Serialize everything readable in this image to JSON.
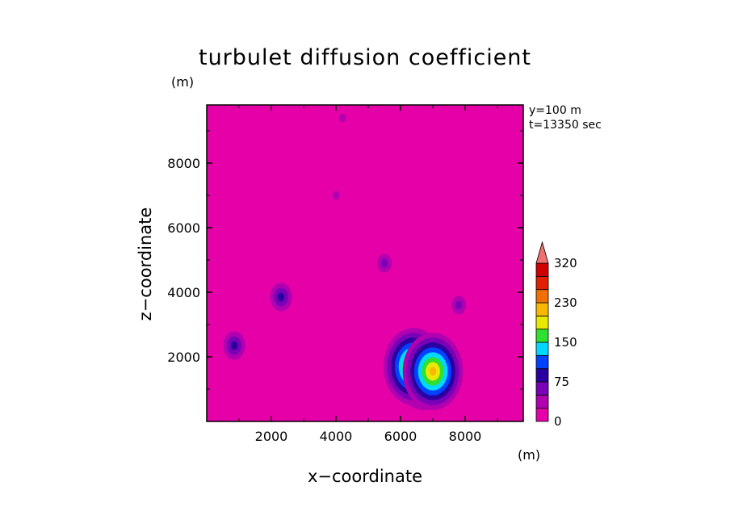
{
  "chart_data": {
    "type": "contour",
    "title": "turbulet diffusion coefficient",
    "xlabel": "x−coordinate",
    "ylabel": "z−coordinate",
    "x_unit": "(m)",
    "z_unit": "(m)",
    "annotations": [
      "y=100 m",
      "t=13350 sec"
    ],
    "xlim": [
      0,
      9800
    ],
    "ylim": [
      0,
      9800
    ],
    "xticks": [
      "2000",
      "4000",
      "6000",
      "8000"
    ],
    "yticks": [
      "2000",
      "4000",
      "6000",
      "8000"
    ],
    "background_color": "#e600a8",
    "colorbar": {
      "tick_labels": [
        "0",
        "75",
        "150",
        "230",
        "320"
      ],
      "levels": [
        0,
        25,
        50,
        75,
        100,
        125,
        150,
        180,
        205,
        230,
        260,
        290,
        320
      ],
      "colors": [
        "#e600a8",
        "#b000b0",
        "#7a00b8",
        "#2a00a0",
        "#0040ff",
        "#00d8ff",
        "#30e030",
        "#e8e800",
        "#f8b800",
        "#f07000",
        "#e02000",
        "#d00000",
        "#f07070"
      ]
    },
    "features": [
      {
        "x": 4200,
        "z": 9400,
        "level": 1
      },
      {
        "x": 4000,
        "z": 7000,
        "level": 1
      },
      {
        "x": 2300,
        "z": 3850,
        "level": 3
      },
      {
        "x": 850,
        "z": 2350,
        "level": 3
      },
      {
        "x": 6700,
        "z": 1400,
        "level": 7
      },
      {
        "x": 6400,
        "z": 1700,
        "level": 8
      },
      {
        "x": 7000,
        "z": 1550,
        "level": 8
      },
      {
        "x": 5500,
        "z": 4900,
        "level": 2
      },
      {
        "x": 7800,
        "z": 3600,
        "level": 2
      }
    ]
  }
}
